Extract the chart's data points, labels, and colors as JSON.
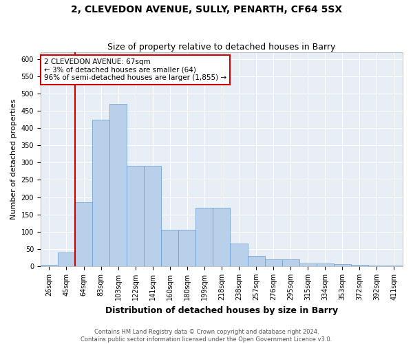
{
  "title": "2, CLEVEDON AVENUE, SULLY, PENARTH, CF64 5SX",
  "subtitle": "Size of property relative to detached houses in Barry",
  "xlabel": "Distribution of detached houses by size in Barry",
  "ylabel": "Number of detached properties",
  "categories": [
    "26sqm",
    "45sqm",
    "64sqm",
    "83sqm",
    "103sqm",
    "122sqm",
    "141sqm",
    "160sqm",
    "180sqm",
    "199sqm",
    "218sqm",
    "238sqm",
    "257sqm",
    "276sqm",
    "295sqm",
    "315sqm",
    "334sqm",
    "353sqm",
    "372sqm",
    "392sqm",
    "411sqm"
  ],
  "values": [
    3,
    40,
    185,
    425,
    470,
    290,
    290,
    105,
    105,
    170,
    170,
    65,
    30,
    20,
    20,
    8,
    8,
    5,
    3,
    2,
    2
  ],
  "bar_color": "#b8d0ea",
  "bar_edge_color": "#6699cc",
  "highlight_line_color": "#cc0000",
  "annotation_line1": "2 CLEVEDON AVENUE: 67sqm",
  "annotation_line2": "← 3% of detached houses are smaller (64)",
  "annotation_line3": "96% of semi-detached houses are larger (1,855) →",
  "annotation_box_color": "#cc0000",
  "ylim": [
    0,
    620
  ],
  "yticks": [
    0,
    50,
    100,
    150,
    200,
    250,
    300,
    350,
    400,
    450,
    500,
    550,
    600
  ],
  "footer_line1": "Contains HM Land Registry data © Crown copyright and database right 2024.",
  "footer_line2": "Contains public sector information licensed under the Open Government Licence v3.0.",
  "fig_bg_color": "#ffffff",
  "plot_bg_color": "#e8eef5",
  "grid_color": "#ffffff",
  "title_fontsize": 10,
  "subtitle_fontsize": 9,
  "tick_fontsize": 7,
  "ylabel_fontsize": 8,
  "xlabel_fontsize": 9,
  "footer_fontsize": 6,
  "annotation_fontsize": 7.5
}
